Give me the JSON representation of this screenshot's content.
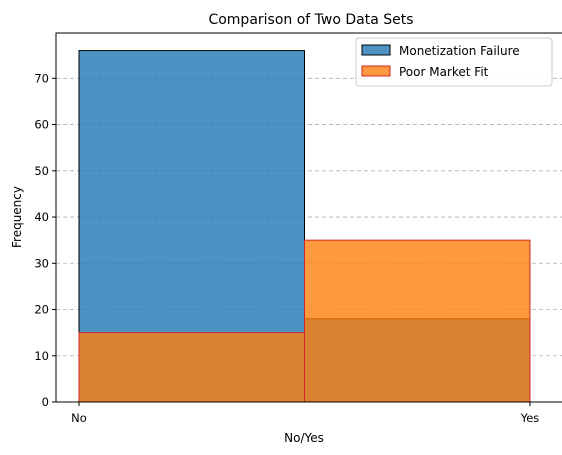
{
  "chart_data": {
    "type": "bar",
    "title": "Comparison of Two Data Sets",
    "xlabel": "No/Yes",
    "ylabel": "Frequency",
    "categories": [
      "No",
      "Yes"
    ],
    "x_tick_labels": [
      "No",
      "Yes"
    ],
    "y_ticks": [
      0,
      10,
      20,
      30,
      40,
      50,
      60,
      70
    ],
    "ylim": [
      0,
      79.8
    ],
    "grid": "horizontal dashed",
    "legend_position": "top-right",
    "overlay": true,
    "series": [
      {
        "name": "Monetization Failure",
        "values": [
          76,
          18
        ],
        "color": "#1f77b4",
        "edge_color": "#000000"
      },
      {
        "name": "Poor Market Fit",
        "values": [
          15,
          35
        ],
        "color": "#ff7f0e",
        "edge_color": "#d62728"
      }
    ]
  }
}
